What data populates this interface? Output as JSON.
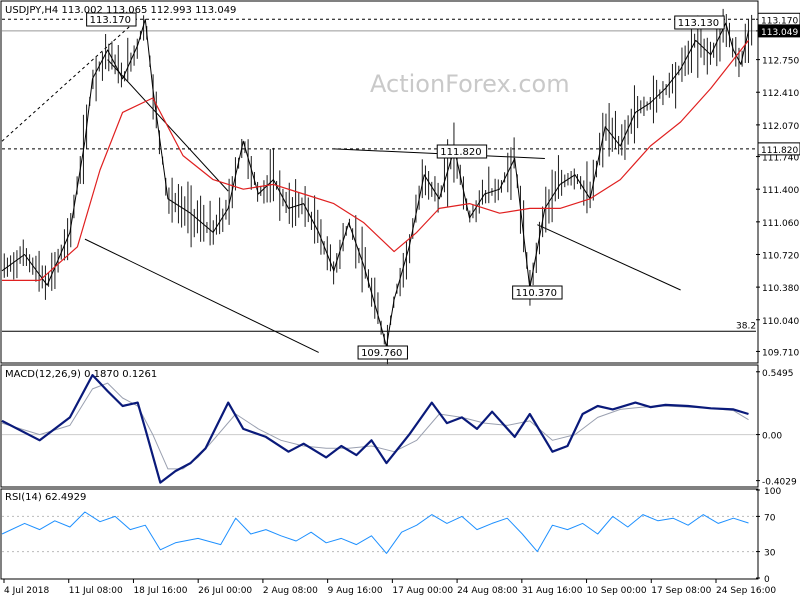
{
  "chart_data": [
    {
      "type": "line",
      "panel": "price",
      "title": "USDJPY,H4  113.002 113.065 112.993 113.049",
      "symbol": "USDJPY",
      "timeframe": "H4",
      "ohlc_last": {
        "open": 113.002,
        "high": 113.065,
        "low": 112.993,
        "close": 113.049
      },
      "watermark": "ActionForex.com",
      "ylim": [
        109.6,
        113.35
      ],
      "y_ticks": [
        "113.170",
        "113.049",
        "112.750",
        "112.410",
        "112.070",
        "111.740",
        "111.400",
        "111.060",
        "110.720",
        "110.380",
        "110.040",
        "109.710"
      ],
      "x_ticks": [
        "4 Jul 2018",
        "11 Jul 08:00",
        "18 Jul 16:00",
        "26 Jul 00:00",
        "2 Aug 08:00",
        "9 Aug 16:00",
        "17 Aug 00:00",
        "24 Aug 08:00",
        "31 Aug 16:00",
        "10 Sep 00:00",
        "17 Sep 08:00",
        "24 Sep 16:00"
      ],
      "x_range": [
        0,
        100
      ],
      "price_series_x": [
        0,
        3,
        6,
        9,
        11,
        12,
        14,
        16,
        18,
        19,
        20,
        22,
        25,
        28,
        30,
        32,
        34,
        36,
        38,
        40,
        42,
        44,
        46,
        48,
        50,
        51,
        52,
        54,
        56,
        58,
        60,
        62,
        64,
        66,
        68,
        70,
        72,
        74,
        76,
        78,
        80,
        82,
        84,
        86,
        88,
        90,
        92,
        94,
        96,
        97,
        98,
        99
      ],
      "price_series_y": [
        110.55,
        110.72,
        110.4,
        110.95,
        111.9,
        112.55,
        112.85,
        112.55,
        112.9,
        113.17,
        112.45,
        111.3,
        111.15,
        110.95,
        111.2,
        111.9,
        111.35,
        111.5,
        111.2,
        111.25,
        110.95,
        110.55,
        111.05,
        110.6,
        110.05,
        109.76,
        110.25,
        110.8,
        111.55,
        111.3,
        111.82,
        111.1,
        111.35,
        111.4,
        111.72,
        110.37,
        111.2,
        111.45,
        111.55,
        111.3,
        112.05,
        111.85,
        112.2,
        112.3,
        112.45,
        112.65,
        112.95,
        112.8,
        113.13,
        112.85,
        112.7,
        113.049
      ],
      "ma_series_x": [
        0,
        5,
        10,
        13,
        16,
        20,
        24,
        28,
        32,
        36,
        40,
        44,
        48,
        52,
        55,
        58,
        62,
        66,
        70,
        74,
        78,
        82,
        86,
        90,
        94,
        97,
        99
      ],
      "ma_series_y": [
        110.45,
        110.45,
        110.8,
        111.6,
        112.2,
        112.35,
        111.75,
        111.5,
        111.4,
        111.45,
        111.35,
        111.25,
        111.05,
        110.75,
        110.95,
        111.2,
        111.25,
        111.15,
        111.2,
        111.2,
        111.3,
        111.5,
        111.85,
        112.1,
        112.45,
        112.75,
        112.95
      ],
      "horizontal_levels": [
        113.17,
        113.049,
        111.82,
        109.92
      ],
      "level_labels": {
        "high_left": "113.170",
        "high_right": "113.130",
        "mid": "111.820",
        "low": "109.760",
        "low2": "110.370",
        "fib": "38.2"
      },
      "channel_upper": [
        [
          14,
          112.75
        ],
        [
          30,
          111.38
        ]
      ],
      "channel_lower": [
        [
          11,
          110.88
        ],
        [
          42,
          109.7
        ]
      ],
      "support_trend": [
        [
          71,
          111.03
        ],
        [
          90,
          110.35
        ]
      ],
      "resistance_trend": [
        [
          44,
          111.82
        ],
        [
          72,
          111.72
        ]
      ],
      "grid": false
    },
    {
      "type": "line",
      "panel": "macd",
      "title": "MACD(12,26,9) 0.1870 0.1261",
      "values": {
        "macd": 0.187,
        "signal": 0.1261
      },
      "y_ticks": [
        "0.5495",
        "0.00",
        "-0.4029"
      ],
      "ylim": [
        -0.45,
        0.6
      ],
      "macd_x": [
        0,
        5,
        9,
        12,
        14,
        16,
        18,
        19,
        21,
        23,
        25,
        27,
        30,
        32,
        35,
        38,
        40,
        43,
        45,
        47,
        49,
        51,
        54,
        57,
        59,
        61,
        63,
        65,
        68,
        70,
        73,
        75,
        77,
        79,
        81,
        84,
        86,
        88,
        91,
        94,
        97,
        99
      ],
      "macd_y": [
        0.12,
        -0.05,
        0.15,
        0.52,
        0.38,
        0.25,
        0.28,
        0.05,
        -0.42,
        -0.32,
        -0.25,
        -0.12,
        0.28,
        0.05,
        -0.02,
        -0.15,
        -0.08,
        -0.2,
        -0.1,
        -0.18,
        -0.05,
        -0.25,
        0.0,
        0.28,
        0.1,
        0.15,
        0.05,
        0.2,
        -0.02,
        0.18,
        -0.15,
        -0.1,
        0.18,
        0.25,
        0.22,
        0.28,
        0.24,
        0.26,
        0.25,
        0.23,
        0.22,
        0.18
      ],
      "signal_x": [
        0,
        5,
        9,
        12,
        14,
        16,
        18,
        20,
        22,
        24,
        26,
        28,
        31,
        34,
        37,
        40,
        43,
        46,
        49,
        52,
        55,
        58,
        61,
        64,
        67,
        70,
        73,
        76,
        79,
        82,
        85,
        88,
        91,
        94,
        97,
        99
      ],
      "signal_y": [
        0.1,
        0.0,
        0.08,
        0.4,
        0.45,
        0.32,
        0.25,
        0.0,
        -0.3,
        -0.3,
        -0.2,
        -0.05,
        0.18,
        0.05,
        -0.05,
        -0.1,
        -0.12,
        -0.12,
        -0.1,
        -0.15,
        -0.05,
        0.18,
        0.15,
        0.1,
        0.08,
        0.12,
        -0.05,
        0.0,
        0.15,
        0.22,
        0.24,
        0.25,
        0.24,
        0.23,
        0.21,
        0.13
      ]
    },
    {
      "type": "line",
      "panel": "rsi",
      "title": "RSI(14) 62.4929",
      "values": {
        "rsi": 62.4929
      },
      "y_ticks": [
        "100",
        "70",
        "30",
        "0"
      ],
      "ylim": [
        0,
        100
      ],
      "rsi_x": [
        0,
        3,
        5,
        7,
        9,
        11,
        13,
        15,
        17,
        19,
        21,
        23,
        26,
        29,
        31,
        33,
        35,
        37,
        39,
        41,
        43,
        45,
        47,
        49,
        51,
        53,
        55,
        57,
        59,
        61,
        63,
        65,
        67,
        69,
        71,
        73,
        75,
        77,
        79,
        81,
        83,
        85,
        87,
        89,
        91,
        93,
        95,
        97,
        99
      ],
      "rsi_y": [
        50,
        62,
        55,
        65,
        58,
        75,
        64,
        70,
        55,
        60,
        32,
        40,
        45,
        38,
        68,
        50,
        55,
        48,
        42,
        52,
        40,
        45,
        38,
        48,
        28,
        52,
        60,
        72,
        62,
        70,
        55,
        62,
        68,
        50,
        30,
        60,
        55,
        62,
        50,
        70,
        58,
        72,
        65,
        68,
        60,
        72,
        62,
        68,
        62.5
      ]
    }
  ]
}
